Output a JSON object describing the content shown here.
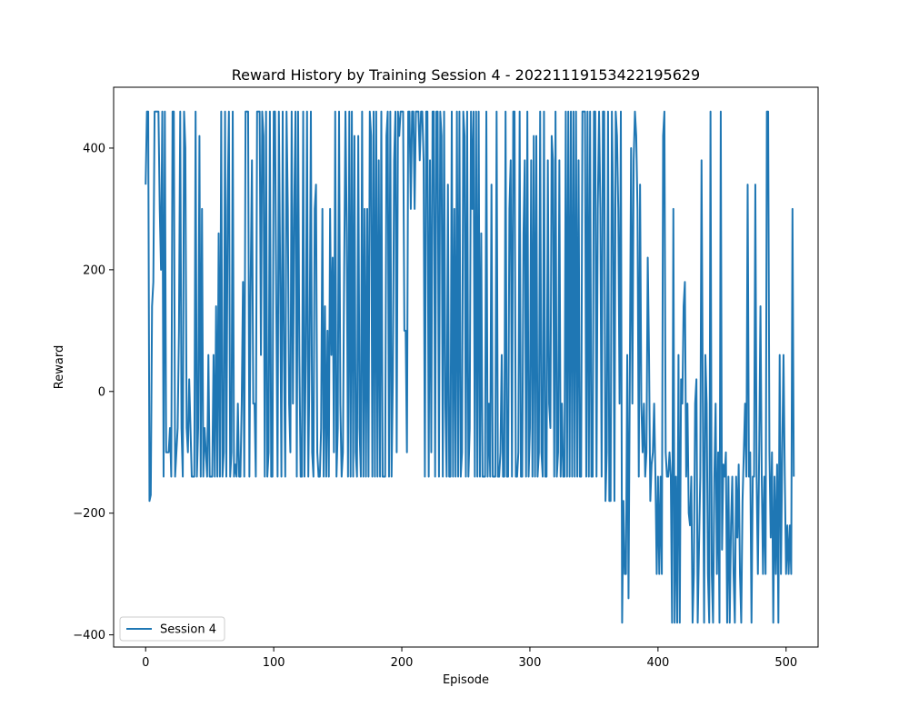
{
  "chart_data": {
    "type": "line",
    "title": "Reward History by Training Session 4 - 20221119153422195629",
    "xlabel": "Episode",
    "ylabel": "Reward",
    "xlim": [
      -25,
      525
    ],
    "ylim": [
      -420,
      500
    ],
    "x_ticks": [
      0,
      100,
      200,
      300,
      400,
      500
    ],
    "y_ticks": [
      -400,
      -200,
      0,
      200,
      400
    ],
    "grid": false,
    "legend": "lower-left",
    "series": [
      {
        "name": "Session 4",
        "color": "#1f77b4",
        "x_start": 0,
        "x_step": 1,
        "values": [
          340,
          460,
          460,
          -180,
          -170,
          140,
          180,
          460,
          460,
          460,
          460,
          300,
          200,
          460,
          -140,
          460,
          -100,
          -100,
          -100,
          -60,
          -140,
          460,
          460,
          -140,
          -100,
          -60,
          100,
          460,
          -60,
          -140,
          460,
          400,
          -60,
          -100,
          20,
          -60,
          -140,
          -140,
          -140,
          460,
          -140,
          -60,
          420,
          -140,
          300,
          -140,
          -60,
          -100,
          -140,
          60,
          -140,
          -140,
          -140,
          60,
          -140,
          140,
          -140,
          260,
          -140,
          460,
          -140,
          -100,
          460,
          -140,
          300,
          460,
          -140,
          -100,
          460,
          -140,
          -120,
          -140,
          -20,
          -140,
          -140,
          -20,
          180,
          -140,
          460,
          460,
          460,
          -140,
          180,
          380,
          -20,
          -20,
          -140,
          460,
          460,
          460,
          60,
          460,
          420,
          -140,
          460,
          -140,
          -100,
          460,
          -140,
          -140,
          460,
          460,
          140,
          -140,
          460,
          200,
          -140,
          460,
          60,
          -140,
          460,
          300,
          -20,
          -100,
          460,
          -20,
          300,
          460,
          -140,
          460,
          60,
          -140,
          -140,
          460,
          -140,
          60,
          460,
          -140,
          60,
          460,
          -100,
          -140,
          300,
          340,
          -100,
          -140,
          -140,
          -60,
          300,
          -140,
          140,
          -140,
          100,
          -140,
          300,
          60,
          220,
          -100,
          460,
          -140,
          -60,
          460,
          -20,
          -140,
          -100,
          200,
          460,
          260,
          -140,
          460,
          -140,
          460,
          -140,
          420,
          -100,
          -140,
          420,
          -60,
          -140,
          460,
          -140,
          300,
          -140,
          300,
          -140,
          460,
          420,
          -140,
          460,
          -140,
          460,
          -140,
          380,
          -140,
          460,
          -140,
          -140,
          -140,
          420,
          460,
          -140,
          460,
          -140,
          20,
          380,
          460,
          -100,
          460,
          420,
          460,
          460,
          460,
          100,
          100,
          -100,
          460,
          460,
          300,
          460,
          460,
          300,
          460,
          460,
          460,
          380,
          460,
          460,
          380,
          -140,
          460,
          460,
          -140,
          380,
          -100,
          460,
          460,
          -140,
          460,
          460,
          -140,
          460,
          420,
          -140,
          460,
          -20,
          -140,
          340,
          -140,
          -140,
          460,
          -140,
          300,
          -140,
          460,
          -140,
          460,
          -140,
          -100,
          460,
          420,
          -140,
          460,
          -140,
          -60,
          460,
          300,
          460,
          -140,
          460,
          -140,
          460,
          -140,
          260,
          -140,
          -140,
          -140,
          460,
          -140,
          -20,
          -140,
          340,
          -140,
          -140,
          -140,
          460,
          -140,
          -140,
          -100,
          60,
          -140,
          -140,
          460,
          -140,
          -140,
          300,
          380,
          -140,
          460,
          460,
          -140,
          -140,
          -100,
          460,
          -140,
          -140,
          260,
          380,
          -140,
          460,
          -140,
          -60,
          380,
          -140,
          420,
          -140,
          420,
          -140,
          -100,
          460,
          -100,
          -140,
          460,
          -140,
          -140,
          380,
          -20,
          -60,
          420,
          380,
          -140,
          460,
          -140,
          -100,
          380,
          -140,
          -20,
          -140,
          -140,
          460,
          -140,
          460,
          -140,
          460,
          -140,
          460,
          -140,
          460,
          -140,
          380,
          -140,
          -140,
          460,
          460,
          460,
          -140,
          460,
          -140,
          460,
          -140,
          -140,
          460,
          460,
          -140,
          300,
          460,
          300,
          -140,
          460,
          460,
          -180,
          -100,
          460,
          -180,
          -180,
          460,
          300,
          -180,
          460,
          420,
          300,
          -20,
          460,
          -380,
          -180,
          -300,
          -300,
          60,
          -340,
          20,
          400,
          -20,
          380,
          460,
          420,
          300,
          -140,
          340,
          -20,
          -100,
          -20,
          -140,
          -100,
          220,
          60,
          -180,
          -120,
          -100,
          -20,
          -140,
          -300,
          -140,
          -300,
          -140,
          -300,
          420,
          460,
          -100,
          -140,
          -140,
          -100,
          -140,
          -380,
          300,
          -380,
          -140,
          -380,
          60,
          -380,
          20,
          -20,
          140,
          180,
          -140,
          -20,
          -200,
          -220,
          -140,
          -380,
          -300,
          -20,
          20,
          -380,
          -260,
          -140,
          380,
          -20,
          -380,
          60,
          -20,
          -300,
          -380,
          460,
          -300,
          -380,
          -140,
          -20,
          -300,
          -100,
          -380,
          460,
          -260,
          -120,
          -140,
          -100,
          -380,
          -140,
          -380,
          -220,
          -140,
          -300,
          -380,
          -140,
          -240,
          -120,
          -300,
          -380,
          -180,
          -100,
          -20,
          -140,
          340,
          -140,
          -100,
          -380,
          -140,
          -140,
          340,
          -140,
          -300,
          -100,
          140,
          -140,
          -300,
          -140,
          -300,
          460,
          460,
          -100,
          -240,
          -100,
          -380,
          -140,
          -300,
          -120,
          -380,
          60,
          -300,
          -100,
          60,
          -140,
          -300,
          -220,
          -300,
          -220,
          -300,
          300,
          -140
        ]
      }
    ]
  }
}
